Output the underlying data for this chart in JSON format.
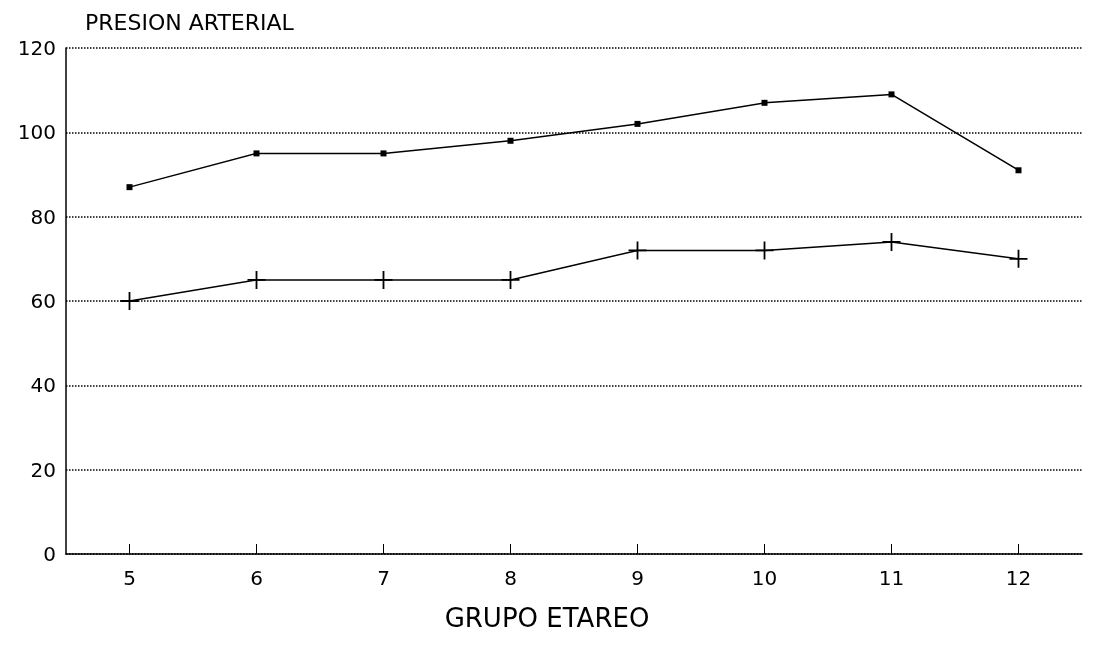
{
  "chart_data": {
    "type": "line",
    "ylabel": "PRESION ARTERIAL",
    "xlabel": "GRUPO ETAREO",
    "categories": [
      "5",
      "6",
      "7",
      "8",
      "9",
      "10",
      "11",
      "12"
    ],
    "series": [
      {
        "color": "#000000",
        "marker": "square",
        "values": [
          87,
          95,
          95,
          98,
          102,
          107,
          109,
          91
        ]
      },
      {
        "color": "#000000",
        "marker": "cross",
        "values": [
          60,
          65,
          65,
          65,
          72,
          72,
          74,
          70
        ]
      }
    ],
    "ylim": [
      0,
      120
    ],
    "yticks": [
      0,
      20,
      40,
      60,
      80,
      100,
      120
    ],
    "grid": "y",
    "line_style": "solid"
  }
}
